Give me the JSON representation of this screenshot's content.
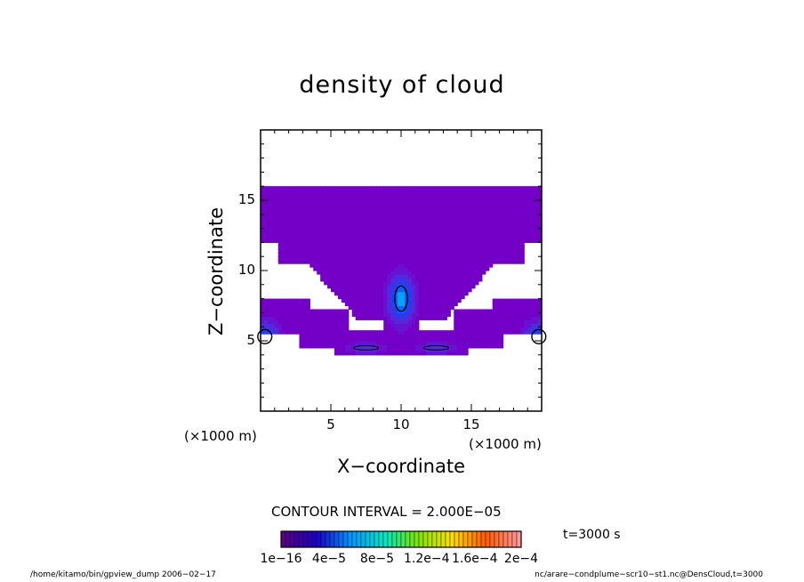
{
  "chart_data": {
    "type": "heatmap",
    "title": "density of cloud",
    "xlabel": "X−coordinate",
    "ylabel": "Z−coordinate",
    "x_unit": "(×1000 m)",
    "y_unit": "(×1000 m)",
    "xlim": [
      0,
      20
    ],
    "ylim": [
      0,
      20
    ],
    "x_ticks": [
      5,
      10,
      15
    ],
    "y_ticks": [
      5,
      10,
      15
    ],
    "contour_interval_text": "CONTOUR INTERVAL = 2.000E−05",
    "contour_interval": 2e-05,
    "time_label": "t=3000 s",
    "colorbar": {
      "labels": [
        "1e−16",
        "4e−5",
        "8e−5",
        "1.2e−4",
        "1.6e−4",
        "2e−4"
      ],
      "range": [
        1e-16,
        0.0002
      ],
      "colormap": [
        "#5a0082",
        "#1a00c8",
        "#0096ff",
        "#00e6c8",
        "#7de600",
        "#ffe000",
        "#ff5a00",
        "#ff9696"
      ]
    },
    "features": [
      {
        "x": 10.0,
        "z": 8.0,
        "peak": 6.5e-05
      },
      {
        "x": 0.3,
        "z": 5.3,
        "peak": 4.5e-05
      },
      {
        "x": 19.8,
        "z": 5.3,
        "peak": 4.5e-05
      },
      {
        "x": 7.5,
        "z": 4.5,
        "peak": 2.5e-05
      },
      {
        "x": 12.5,
        "z": 4.5,
        "peak": 2.5e-05
      }
    ],
    "cloud_top_z": 16.0,
    "cloud_base_z": 4.0,
    "grid": false,
    "legend": "colorbar-bottom"
  },
  "footer": {
    "left": "/home/kitamo/bin/gpview_dump  2006−02−17",
    "right": "nc/arare−condplume−scr10−st1.nc@DensCloud,t=3000"
  }
}
